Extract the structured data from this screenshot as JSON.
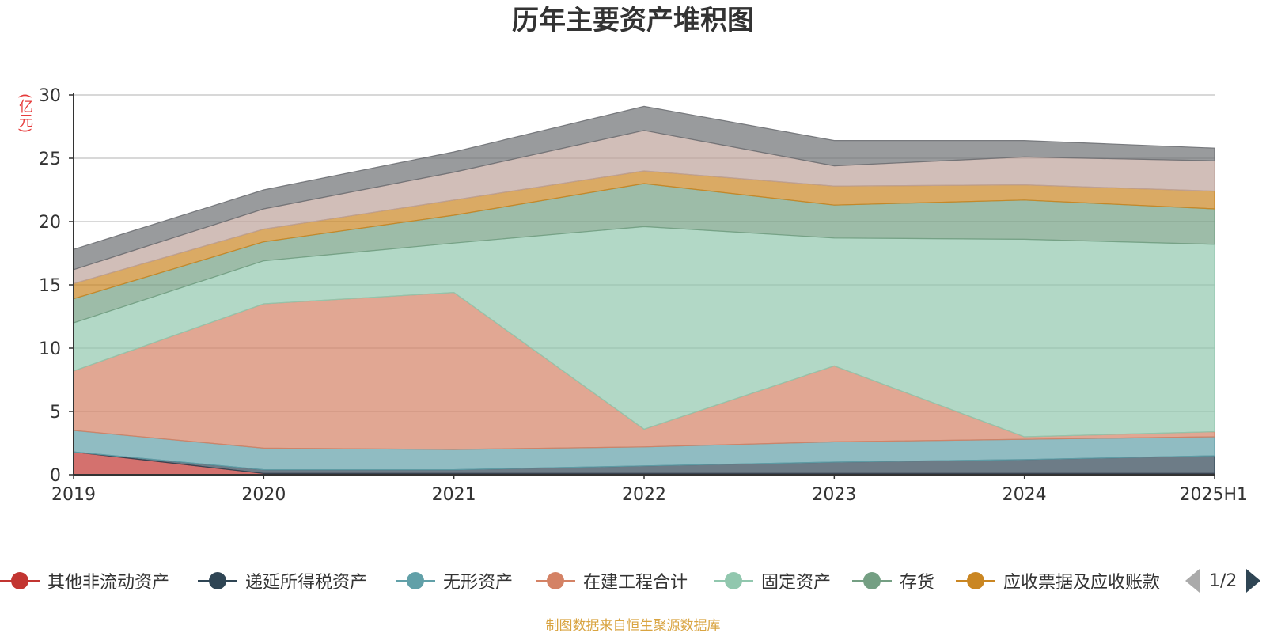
{
  "title": "历年主要资产堆积图",
  "unit": "(亿元)",
  "source": "制图数据来自恒生聚源数据库",
  "pager": {
    "text": "1/2"
  },
  "chart_data": {
    "type": "area",
    "stacked": true,
    "title": "历年主要资产堆积图",
    "ylabel": "(亿元)",
    "categories": [
      "2019",
      "2020",
      "2021",
      "2022",
      "2023",
      "2024",
      "2025H1"
    ],
    "ylim": [
      0,
      30
    ],
    "yticks": [
      0,
      5,
      10,
      15,
      20,
      25,
      30
    ],
    "grid": true,
    "legend_position": "bottom",
    "series": [
      {
        "name": "其他非流动资产",
        "color": "#c23531",
        "values": [
          1.8,
          0.1,
          0.1,
          0.1,
          0.1,
          0.1,
          0.1
        ]
      },
      {
        "name": "递延所得税资产",
        "color": "#2f4554",
        "values": [
          0.0,
          0.3,
          0.3,
          0.6,
          0.9,
          1.1,
          1.4
        ]
      },
      {
        "name": "无形资产",
        "color": "#61a0a8",
        "values": [
          1.7,
          1.7,
          1.6,
          1.5,
          1.6,
          1.6,
          1.5
        ]
      },
      {
        "name": "在建工程合计",
        "color": "#d48265",
        "values": [
          4.7,
          11.4,
          12.4,
          1.4,
          6.0,
          0.2,
          0.4
        ]
      },
      {
        "name": "固定资产",
        "color": "#91c7ae",
        "values": [
          3.8,
          3.4,
          3.9,
          16.0,
          10.1,
          15.6,
          14.8
        ]
      },
      {
        "name": "存货",
        "color": "#749f83",
        "values": [
          1.9,
          1.5,
          2.2,
          3.4,
          2.6,
          3.1,
          2.8
        ]
      },
      {
        "name": "应收票据及应收账款",
        "color": "#ca8622",
        "values": [
          1.2,
          1.0,
          1.2,
          1.0,
          1.5,
          1.2,
          1.4
        ]
      },
      {
        "name": "",
        "color": "#bda29a",
        "values": [
          1.1,
          1.6,
          2.2,
          3.2,
          1.6,
          2.2,
          2.4
        ]
      },
      {
        "name": "",
        "color": "#6e7074",
        "values": [
          1.6,
          1.5,
          1.6,
          1.9,
          2.0,
          1.3,
          1.0
        ]
      }
    ]
  }
}
